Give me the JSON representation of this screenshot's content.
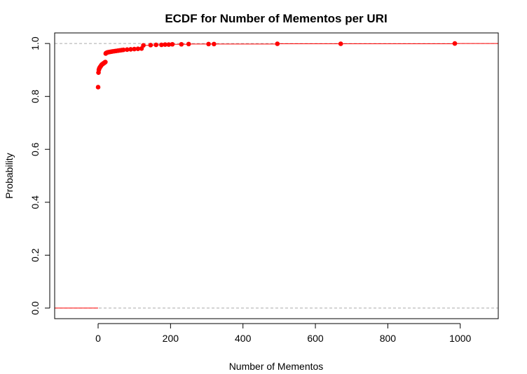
{
  "chart_data": {
    "type": "scatter",
    "title": "ECDF for Number of Mementos per URI",
    "xlabel": "Number of Mementos",
    "ylabel": "Probability",
    "xlim": [
      -120,
      1105
    ],
    "ylim": [
      -0.04,
      1.04
    ],
    "xticks": [
      0,
      200,
      400,
      600,
      800,
      1000
    ],
    "yticks": [
      0.0,
      0.2,
      0.4,
      0.6,
      0.8,
      1.0
    ],
    "xtick_labels": [
      "0",
      "200",
      "400",
      "600",
      "800",
      "1000"
    ],
    "ytick_labels": [
      "0.0",
      "0.2",
      "0.4",
      "0.6",
      "0.8",
      "1.0"
    ],
    "reference_lines": [
      0,
      1
    ],
    "colors": {
      "points": "#ff0000",
      "steps": "#ff0000",
      "reference": "#aaaaaa",
      "axes": "#000000"
    },
    "x": [
      0,
      1,
      2,
      3,
      4,
      5,
      6,
      7,
      8,
      9,
      10,
      11,
      12,
      13,
      14,
      15,
      16,
      17,
      18,
      19,
      20,
      21,
      22,
      25,
      28,
      32,
      36,
      40,
      45,
      50,
      55,
      60,
      65,
      70,
      80,
      90,
      100,
      110,
      120,
      125,
      145,
      160,
      175,
      185,
      195,
      205,
      230,
      250,
      305,
      320,
      495,
      670,
      985
    ],
    "y": [
      0.835,
      0.89,
      0.9,
      0.905,
      0.908,
      0.91,
      0.912,
      0.914,
      0.916,
      0.918,
      0.92,
      0.921,
      0.922,
      0.923,
      0.924,
      0.925,
      0.926,
      0.927,
      0.928,
      0.929,
      0.93,
      0.962,
      0.964,
      0.966,
      0.967,
      0.968,
      0.969,
      0.97,
      0.971,
      0.972,
      0.973,
      0.974,
      0.975,
      0.976,
      0.977,
      0.978,
      0.979,
      0.98,
      0.981,
      0.993,
      0.994,
      0.995,
      0.995,
      0.996,
      0.996,
      0.997,
      0.997,
      0.998,
      0.998,
      0.998,
      0.999,
      0.999,
      1.0
    ]
  }
}
